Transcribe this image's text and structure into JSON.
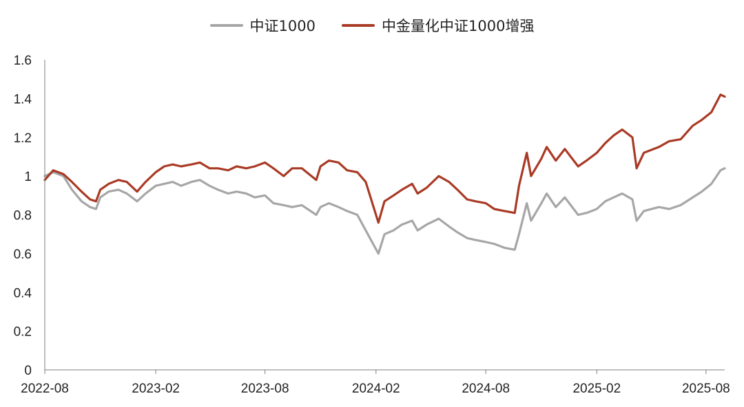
{
  "chart_data": {
    "type": "line",
    "title": "",
    "xlabel": "",
    "ylabel": "",
    "x_ticks": [
      "2022-08",
      "2023-02",
      "2023-08",
      "2024-02",
      "2024-08",
      "2025-02",
      "2025-08"
    ],
    "y_ticks": [
      "0",
      "0.2",
      "0.4",
      "0.6",
      "0.8",
      "1",
      "1.2",
      "1.4",
      "1.6"
    ],
    "ylim": [
      0,
      1.6
    ],
    "xlim": [
      "2022-08",
      "2025-09"
    ],
    "legend_position": "top-center",
    "grid": false,
    "series": [
      {
        "name": "中证1000",
        "color": "#a6a6a6",
        "points": [
          [
            "2022-08-01",
            1.0
          ],
          [
            "2022-08-15",
            1.02
          ],
          [
            "2022-09-01",
            1.0
          ],
          [
            "2022-09-15",
            0.93
          ],
          [
            "2022-10-01",
            0.87
          ],
          [
            "2022-10-15",
            0.84
          ],
          [
            "2022-10-25",
            0.83
          ],
          [
            "2022-11-01",
            0.89
          ],
          [
            "2022-11-15",
            0.92
          ],
          [
            "2022-12-01",
            0.93
          ],
          [
            "2022-12-15",
            0.91
          ],
          [
            "2023-01-01",
            0.87
          ],
          [
            "2023-01-15",
            0.91
          ],
          [
            "2023-02-01",
            0.95
          ],
          [
            "2023-02-15",
            0.96
          ],
          [
            "2023-03-01",
            0.97
          ],
          [
            "2023-03-15",
            0.95
          ],
          [
            "2023-04-01",
            0.97
          ],
          [
            "2023-04-15",
            0.98
          ],
          [
            "2023-05-01",
            0.95
          ],
          [
            "2023-05-15",
            0.93
          ],
          [
            "2023-06-01",
            0.91
          ],
          [
            "2023-06-15",
            0.92
          ],
          [
            "2023-07-01",
            0.91
          ],
          [
            "2023-07-15",
            0.89
          ],
          [
            "2023-08-01",
            0.9
          ],
          [
            "2023-08-15",
            0.86
          ],
          [
            "2023-09-01",
            0.85
          ],
          [
            "2023-09-15",
            0.84
          ],
          [
            "2023-10-01",
            0.85
          ],
          [
            "2023-10-25",
            0.8
          ],
          [
            "2023-11-01",
            0.84
          ],
          [
            "2023-11-15",
            0.86
          ],
          [
            "2023-12-01",
            0.84
          ],
          [
            "2023-12-15",
            0.82
          ],
          [
            "2024-01-01",
            0.8
          ],
          [
            "2024-01-15",
            0.72
          ],
          [
            "2024-02-05",
            0.6
          ],
          [
            "2024-02-15",
            0.7
          ],
          [
            "2024-03-01",
            0.72
          ],
          [
            "2024-03-15",
            0.75
          ],
          [
            "2024-04-01",
            0.77
          ],
          [
            "2024-04-10",
            0.72
          ],
          [
            "2024-04-25",
            0.75
          ],
          [
            "2024-05-15",
            0.78
          ],
          [
            "2024-06-01",
            0.74
          ],
          [
            "2024-06-15",
            0.71
          ],
          [
            "2024-07-01",
            0.68
          ],
          [
            "2024-07-15",
            0.67
          ],
          [
            "2024-08-01",
            0.66
          ],
          [
            "2024-08-15",
            0.65
          ],
          [
            "2024-09-01",
            0.63
          ],
          [
            "2024-09-18",
            0.62
          ],
          [
            "2024-09-25",
            0.7
          ],
          [
            "2024-10-08",
            0.86
          ],
          [
            "2024-10-15",
            0.77
          ],
          [
            "2024-11-01",
            0.86
          ],
          [
            "2024-11-10",
            0.91
          ],
          [
            "2024-11-25",
            0.84
          ],
          [
            "2024-12-10",
            0.89
          ],
          [
            "2025-01-01",
            0.8
          ],
          [
            "2025-01-15",
            0.81
          ],
          [
            "2025-02-01",
            0.83
          ],
          [
            "2025-02-15",
            0.87
          ],
          [
            "2025-03-01",
            0.89
          ],
          [
            "2025-03-15",
            0.91
          ],
          [
            "2025-04-01",
            0.88
          ],
          [
            "2025-04-08",
            0.77
          ],
          [
            "2025-04-20",
            0.82
          ],
          [
            "2025-05-15",
            0.84
          ],
          [
            "2025-06-01",
            0.83
          ],
          [
            "2025-06-20",
            0.85
          ],
          [
            "2025-07-10",
            0.89
          ],
          [
            "2025-07-25",
            0.92
          ],
          [
            "2025-08-10",
            0.96
          ],
          [
            "2025-08-25",
            1.03
          ],
          [
            "2025-09-01",
            1.04
          ]
        ]
      },
      {
        "name": "中金量化中证1000增强",
        "color": "#a93a25",
        "points": [
          [
            "2022-08-01",
            0.98
          ],
          [
            "2022-08-15",
            1.03
          ],
          [
            "2022-09-01",
            1.01
          ],
          [
            "2022-09-15",
            0.97
          ],
          [
            "2022-10-01",
            0.92
          ],
          [
            "2022-10-15",
            0.88
          ],
          [
            "2022-10-25",
            0.87
          ],
          [
            "2022-11-01",
            0.93
          ],
          [
            "2022-11-15",
            0.96
          ],
          [
            "2022-12-01",
            0.98
          ],
          [
            "2022-12-15",
            0.97
          ],
          [
            "2023-01-01",
            0.92
          ],
          [
            "2023-01-15",
            0.97
          ],
          [
            "2023-02-01",
            1.02
          ],
          [
            "2023-02-15",
            1.05
          ],
          [
            "2023-03-01",
            1.06
          ],
          [
            "2023-03-15",
            1.05
          ],
          [
            "2023-04-01",
            1.06
          ],
          [
            "2023-04-15",
            1.07
          ],
          [
            "2023-05-01",
            1.04
          ],
          [
            "2023-05-15",
            1.04
          ],
          [
            "2023-06-01",
            1.03
          ],
          [
            "2023-06-15",
            1.05
          ],
          [
            "2023-07-01",
            1.04
          ],
          [
            "2023-07-15",
            1.05
          ],
          [
            "2023-08-01",
            1.07
          ],
          [
            "2023-08-15",
            1.04
          ],
          [
            "2023-09-01",
            1.0
          ],
          [
            "2023-09-15",
            1.04
          ],
          [
            "2023-10-01",
            1.04
          ],
          [
            "2023-10-25",
            0.98
          ],
          [
            "2023-11-01",
            1.05
          ],
          [
            "2023-11-15",
            1.08
          ],
          [
            "2023-12-01",
            1.07
          ],
          [
            "2023-12-15",
            1.03
          ],
          [
            "2024-01-01",
            1.02
          ],
          [
            "2024-01-15",
            0.97
          ],
          [
            "2024-02-05",
            0.76
          ],
          [
            "2024-02-15",
            0.87
          ],
          [
            "2024-03-01",
            0.9
          ],
          [
            "2024-03-15",
            0.93
          ],
          [
            "2024-04-01",
            0.96
          ],
          [
            "2024-04-10",
            0.91
          ],
          [
            "2024-04-25",
            0.94
          ],
          [
            "2024-05-15",
            1.0
          ],
          [
            "2024-06-01",
            0.97
          ],
          [
            "2024-06-15",
            0.93
          ],
          [
            "2024-07-01",
            0.88
          ],
          [
            "2024-07-15",
            0.87
          ],
          [
            "2024-08-01",
            0.86
          ],
          [
            "2024-08-15",
            0.83
          ],
          [
            "2024-09-01",
            0.82
          ],
          [
            "2024-09-18",
            0.81
          ],
          [
            "2024-09-25",
            0.95
          ],
          [
            "2024-10-08",
            1.12
          ],
          [
            "2024-10-15",
            1.0
          ],
          [
            "2024-11-01",
            1.09
          ],
          [
            "2024-11-10",
            1.15
          ],
          [
            "2024-11-25",
            1.08
          ],
          [
            "2024-12-10",
            1.14
          ],
          [
            "2025-01-01",
            1.05
          ],
          [
            "2025-01-15",
            1.08
          ],
          [
            "2025-02-01",
            1.12
          ],
          [
            "2025-02-15",
            1.17
          ],
          [
            "2025-03-01",
            1.21
          ],
          [
            "2025-03-15",
            1.24
          ],
          [
            "2025-04-01",
            1.2
          ],
          [
            "2025-04-08",
            1.04
          ],
          [
            "2025-04-20",
            1.12
          ],
          [
            "2025-05-15",
            1.15
          ],
          [
            "2025-06-01",
            1.18
          ],
          [
            "2025-06-20",
            1.19
          ],
          [
            "2025-07-10",
            1.26
          ],
          [
            "2025-07-25",
            1.29
          ],
          [
            "2025-08-10",
            1.33
          ],
          [
            "2025-08-25",
            1.42
          ],
          [
            "2025-09-01",
            1.41
          ]
        ]
      }
    ]
  }
}
